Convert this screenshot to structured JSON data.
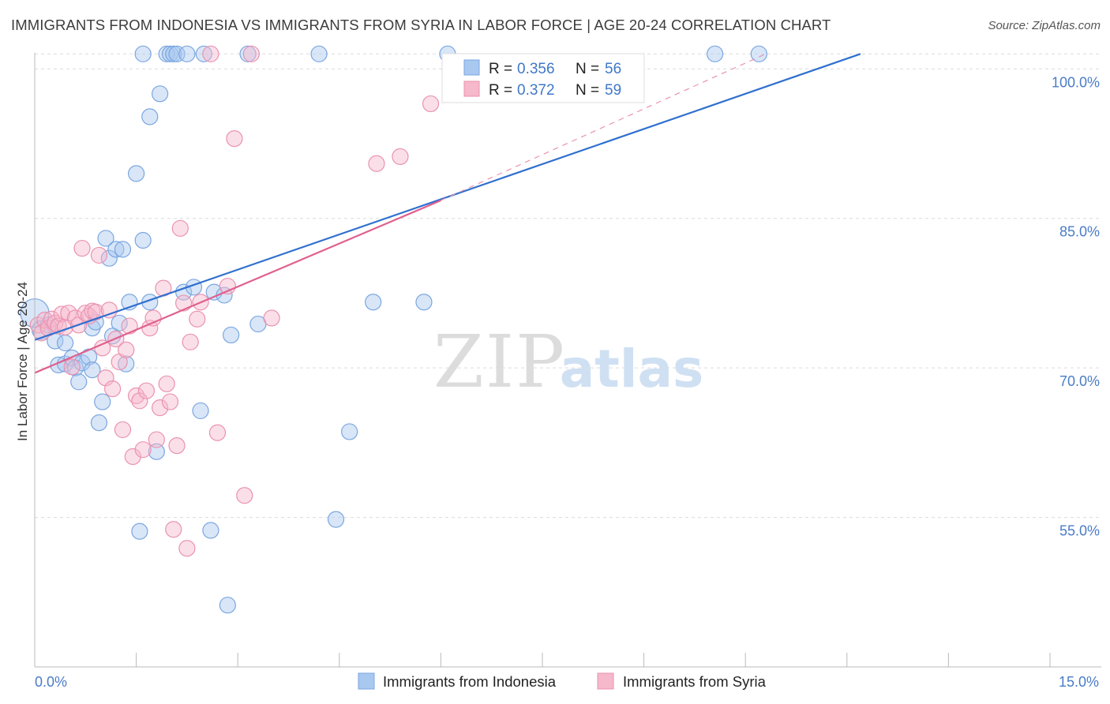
{
  "title": "IMMIGRANTS FROM INDONESIA VS IMMIGRANTS FROM SYRIA IN LABOR FORCE | AGE 20-24 CORRELATION CHART",
  "source": "Source: ZipAtlas.com",
  "watermark": {
    "zip": "ZIP",
    "atlas": "atlas"
  },
  "colors": {
    "indonesia_fill": "#a9c8ef",
    "indonesia_stroke": "#7aa6e0",
    "indonesia_line": "#2f6fcf",
    "syria_fill": "#f6b8cb",
    "syria_stroke": "#ea92b0",
    "syria_line": "#e0608e",
    "tick_text": "#4a7cc7",
    "grid": "#dcdcdc"
  },
  "chart_data": {
    "type": "scatter",
    "xlabel": "",
    "ylabel": "In Labor Force | Age 20-24",
    "xlim": [
      0.0,
      15.0
    ],
    "ylim": [
      40.0,
      102.0
    ],
    "x_tick_labels": {
      "min": "0.0%",
      "max": "15.0%"
    },
    "y_ticks": [
      {
        "value": 55.0,
        "label": "55.0%"
      },
      {
        "value": 70.0,
        "label": "70.0%"
      },
      {
        "value": 85.0,
        "label": "85.0%"
      },
      {
        "value": 100.0,
        "label": "100.0%"
      }
    ],
    "grid": true,
    "legend": {
      "position": "top-center",
      "entries": [
        {
          "series": "Immigrants from Indonesia",
          "r_label": "R =",
          "r": "0.356",
          "n_label": "N =",
          "n": "56"
        },
        {
          "series": "Immigrants from Syria",
          "r_label": "R =",
          "r": "0.372",
          "n_label": "N =",
          "n": "59"
        }
      ]
    },
    "series": [
      {
        "name": "Immigrants from Indonesia",
        "trend": {
          "x": [
            0.0,
            12.2
          ],
          "y": [
            72.8,
            101.5
          ],
          "dashed_extension": null
        },
        "points": [
          [
            0.0,
            75.5,
            18
          ],
          [
            0.1,
            73.8,
            12
          ],
          [
            0.2,
            74.3,
            10
          ],
          [
            0.3,
            72.7,
            10
          ],
          [
            0.45,
            72.5,
            10
          ],
          [
            0.35,
            70.3,
            10
          ],
          [
            0.45,
            70.4,
            10
          ],
          [
            0.55,
            71.0,
            10
          ],
          [
            0.6,
            70.0,
            10
          ],
          [
            0.65,
            68.6,
            10
          ],
          [
            0.7,
            70.5,
            10
          ],
          [
            0.8,
            71.1,
            10
          ],
          [
            0.85,
            74.0,
            10
          ],
          [
            0.85,
            69.8,
            10
          ],
          [
            0.9,
            74.6,
            10
          ],
          [
            0.95,
            64.5,
            10
          ],
          [
            1.0,
            66.6,
            10
          ],
          [
            1.05,
            83.0,
            10
          ],
          [
            1.1,
            81.0,
            10
          ],
          [
            1.15,
            73.2,
            10
          ],
          [
            1.2,
            81.9,
            10
          ],
          [
            1.25,
            74.5,
            10
          ],
          [
            1.3,
            81.9,
            10
          ],
          [
            1.35,
            70.4,
            10
          ],
          [
            1.4,
            76.6,
            10
          ],
          [
            1.5,
            89.5,
            10
          ],
          [
            1.55,
            53.6,
            10
          ],
          [
            1.6,
            82.8,
            10
          ],
          [
            1.6,
            101.5,
            10
          ],
          [
            1.7,
            76.6,
            10
          ],
          [
            1.7,
            95.2,
            10
          ],
          [
            1.8,
            61.6,
            10
          ],
          [
            1.85,
            97.5,
            10
          ],
          [
            1.95,
            101.5,
            10
          ],
          [
            2.0,
            101.5,
            10
          ],
          [
            2.05,
            101.5,
            10
          ],
          [
            2.1,
            101.5,
            10
          ],
          [
            2.2,
            77.6,
            10
          ],
          [
            2.25,
            101.5,
            10
          ],
          [
            2.35,
            78.1,
            10
          ],
          [
            2.45,
            65.7,
            10
          ],
          [
            2.5,
            101.5,
            10
          ],
          [
            2.6,
            53.7,
            10
          ],
          [
            2.65,
            77.6,
            10
          ],
          [
            2.8,
            77.3,
            10
          ],
          [
            2.85,
            46.2,
            10
          ],
          [
            2.9,
            73.3,
            10
          ],
          [
            3.15,
            101.5,
            10
          ],
          [
            3.3,
            74.4,
            10
          ],
          [
            4.2,
            101.5,
            10
          ],
          [
            4.45,
            54.8,
            10
          ],
          [
            4.65,
            63.6,
            10
          ],
          [
            5.0,
            76.6,
            10
          ],
          [
            5.75,
            76.6,
            10
          ],
          [
            6.1,
            101.5,
            10
          ],
          [
            10.05,
            101.5,
            10
          ],
          [
            10.7,
            101.5,
            10
          ]
        ]
      },
      {
        "name": "Immigrants from Syria",
        "trend": {
          "x": [
            0.0,
            6.0
          ],
          "y": [
            69.5,
            86.8
          ],
          "dashed_extension": {
            "x": [
              6.0,
              10.8
            ],
            "y": [
              86.8,
              101.5
            ]
          }
        },
        "points": [
          [
            0.05,
            74.3,
            10
          ],
          [
            0.1,
            73.5,
            10
          ],
          [
            0.15,
            74.8,
            10
          ],
          [
            0.2,
            74.0,
            10
          ],
          [
            0.25,
            74.9,
            10
          ],
          [
            0.3,
            74.5,
            10
          ],
          [
            0.35,
            74.2,
            10
          ],
          [
            0.4,
            75.4,
            10
          ],
          [
            0.45,
            74.1,
            10
          ],
          [
            0.5,
            75.5,
            10
          ],
          [
            0.55,
            70.1,
            10
          ],
          [
            0.6,
            75.0,
            10
          ],
          [
            0.65,
            74.3,
            10
          ],
          [
            0.7,
            82.0,
            10
          ],
          [
            0.75,
            75.5,
            10
          ],
          [
            0.8,
            75.2,
            10
          ],
          [
            0.85,
            75.7,
            10
          ],
          [
            0.9,
            75.6,
            10
          ],
          [
            0.95,
            81.3,
            10
          ],
          [
            1.0,
            72.0,
            10
          ],
          [
            1.05,
            69.0,
            10
          ],
          [
            1.1,
            75.8,
            10
          ],
          [
            1.15,
            67.9,
            10
          ],
          [
            1.2,
            72.9,
            10
          ],
          [
            1.25,
            70.6,
            10
          ],
          [
            1.3,
            63.8,
            10
          ],
          [
            1.35,
            71.8,
            10
          ],
          [
            1.4,
            74.2,
            10
          ],
          [
            1.45,
            61.1,
            10
          ],
          [
            1.5,
            67.2,
            10
          ],
          [
            1.55,
            66.7,
            10
          ],
          [
            1.6,
            61.8,
            10
          ],
          [
            1.65,
            67.7,
            10
          ],
          [
            1.7,
            74.0,
            10
          ],
          [
            1.75,
            75.0,
            10
          ],
          [
            1.8,
            62.8,
            10
          ],
          [
            1.85,
            66.0,
            10
          ],
          [
            1.9,
            78.0,
            10
          ],
          [
            1.95,
            68.4,
            10
          ],
          [
            2.0,
            66.6,
            10
          ],
          [
            2.05,
            53.8,
            10
          ],
          [
            2.1,
            62.2,
            10
          ],
          [
            2.15,
            84.0,
            10
          ],
          [
            2.2,
            76.5,
            10
          ],
          [
            2.25,
            51.9,
            10
          ],
          [
            2.3,
            72.6,
            10
          ],
          [
            2.4,
            74.9,
            10
          ],
          [
            2.45,
            76.6,
            10
          ],
          [
            2.6,
            101.5,
            10
          ],
          [
            2.7,
            63.5,
            10
          ],
          [
            2.85,
            78.2,
            10
          ],
          [
            2.95,
            93.0,
            10
          ],
          [
            3.1,
            57.2,
            10
          ],
          [
            3.2,
            101.5,
            10
          ],
          [
            3.5,
            75.0,
            10
          ],
          [
            5.05,
            90.5,
            10
          ],
          [
            5.4,
            91.2,
            10
          ],
          [
            5.85,
            96.5,
            10
          ]
        ]
      }
    ]
  }
}
